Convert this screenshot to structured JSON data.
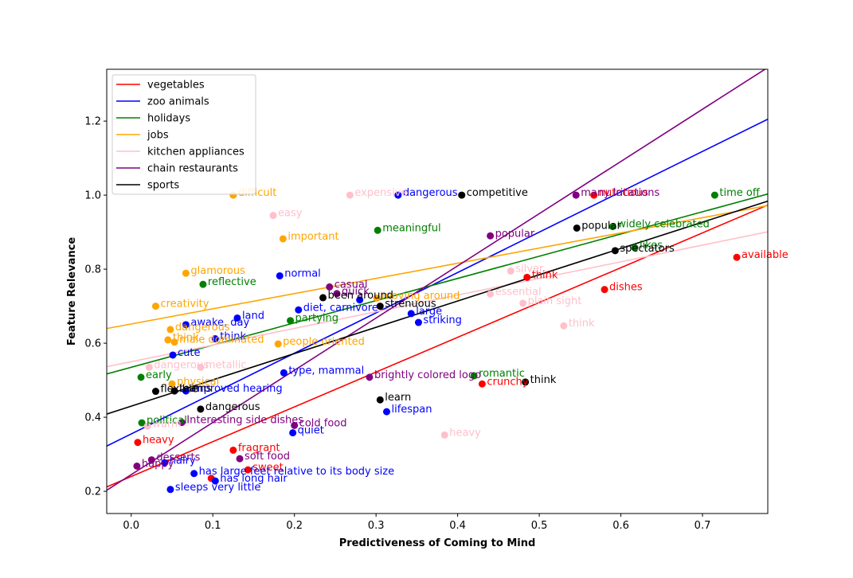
{
  "chart_data": {
    "type": "scatter",
    "title": "",
    "xlabel": "Predictiveness of Coming to Mind",
    "ylabel": "Feature Relevance",
    "xlim": [
      -0.03,
      0.78
    ],
    "ylim": [
      0.14,
      1.34
    ],
    "xticks": [
      0.0,
      0.1,
      0.2,
      0.3,
      0.4,
      0.5,
      0.6,
      0.7
    ],
    "yticks": [
      0.2,
      0.4,
      0.6,
      0.8,
      1.0,
      1.2
    ],
    "grid": false,
    "legend_position": "top-left",
    "series": [
      {
        "name": "vegetables",
        "color": "#ff0000",
        "fit": {
          "slope": 0.94,
          "intercept": 0.24
        },
        "points": [
          {
            "x": 0.008,
            "y": 0.332,
            "label": "heavy"
          },
          {
            "x": 0.125,
            "y": 0.311,
            "label": "fragrant"
          },
          {
            "x": 0.143,
            "y": 0.258,
            "label": "sweet"
          },
          {
            "x": 0.098,
            "y": 0.235,
            "label": ""
          },
          {
            "x": 0.43,
            "y": 0.49,
            "label": "crunchy"
          },
          {
            "x": 0.485,
            "y": 0.778,
            "label": "think"
          },
          {
            "x": 0.58,
            "y": 0.745,
            "label": "dishes"
          },
          {
            "x": 0.742,
            "y": 0.832,
            "label": "available"
          },
          {
            "x": 0.567,
            "y": 1.0,
            "label": "nutritious"
          }
        ]
      },
      {
        "name": "zoo animals",
        "color": "#0000ff",
        "fit": {
          "slope": 1.09,
          "intercept": 0.355
        },
        "points": [
          {
            "x": 0.048,
            "y": 0.205,
            "label": "sleeps very little"
          },
          {
            "x": 0.103,
            "y": 0.228,
            "label": "has long hair"
          },
          {
            "x": 0.077,
            "y": 0.248,
            "label": "has large feet relative to its body size"
          },
          {
            "x": 0.041,
            "y": 0.277,
            "label": "hairy"
          },
          {
            "x": 0.198,
            "y": 0.358,
            "label": "quiet"
          },
          {
            "x": 0.313,
            "y": 0.415,
            "label": "lifespan"
          },
          {
            "x": 0.067,
            "y": 0.471,
            "label": "improved hearing"
          },
          {
            "x": 0.187,
            "y": 0.52,
            "label": "type, mammal"
          },
          {
            "x": 0.051,
            "y": 0.568,
            "label": "cute"
          },
          {
            "x": 0.103,
            "y": 0.612,
            "label": "think"
          },
          {
            "x": 0.067,
            "y": 0.65,
            "label": "awake, day"
          },
          {
            "x": 0.13,
            "y": 0.668,
            "label": "land"
          },
          {
            "x": 0.205,
            "y": 0.69,
            "label": "diet, carnivore"
          },
          {
            "x": 0.28,
            "y": 0.717,
            "label": ""
          },
          {
            "x": 0.343,
            "y": 0.68,
            "label": "large"
          },
          {
            "x": 0.352,
            "y": 0.656,
            "label": "striking"
          },
          {
            "x": 0.182,
            "y": 0.782,
            "label": "normal"
          },
          {
            "x": 0.327,
            "y": 1.0,
            "label": "dangerous"
          }
        ]
      },
      {
        "name": "holidays",
        "color": "#008000",
        "fit": {
          "slope": 0.6,
          "intercept": 0.535
        },
        "points": [
          {
            "x": 0.012,
            "y": 0.508,
            "label": "early"
          },
          {
            "x": 0.013,
            "y": 0.385,
            "label": "political"
          },
          {
            "x": 0.088,
            "y": 0.759,
            "label": "reflective"
          },
          {
            "x": 0.195,
            "y": 0.661,
            "label": "partying"
          },
          {
            "x": 0.302,
            "y": 0.905,
            "label": "meaningful"
          },
          {
            "x": 0.42,
            "y": 0.512,
            "label": "romantic"
          },
          {
            "x": 0.59,
            "y": 0.915,
            "label": "widely celebrated"
          },
          {
            "x": 0.617,
            "y": 0.858,
            "label": "likes"
          },
          {
            "x": 0.715,
            "y": 1.0,
            "label": "time off"
          }
        ]
      },
      {
        "name": "jobs",
        "color": "#ffa500",
        "fit": {
          "slope": 0.41,
          "intercept": 0.652
        },
        "points": [
          {
            "x": 0.125,
            "y": 1.0,
            "label": "difficult"
          },
          {
            "x": 0.186,
            "y": 0.882,
            "label": "important"
          },
          {
            "x": 0.067,
            "y": 0.789,
            "label": "glamorous"
          },
          {
            "x": 0.03,
            "y": 0.7,
            "label": "creativity"
          },
          {
            "x": 0.048,
            "y": 0.637,
            "label": "dangerous"
          },
          {
            "x": 0.045,
            "y": 0.609,
            "label": "think"
          },
          {
            "x": 0.053,
            "y": 0.603,
            "label": "male dominated"
          },
          {
            "x": 0.18,
            "y": 0.598,
            "label": "people oriented"
          },
          {
            "x": 0.05,
            "y": 0.49,
            "label": "physical"
          },
          {
            "x": 0.301,
            "y": 0.722,
            "label": "moving around"
          }
        ]
      },
      {
        "name": "kitchen appliances",
        "color": "#ffc0cb",
        "fit": {
          "slope": 0.45,
          "intercept": 0.55
        },
        "points": [
          {
            "x": 0.268,
            "y": 1.0,
            "label": "expensive"
          },
          {
            "x": 0.174,
            "y": 0.945,
            "label": "easy"
          },
          {
            "x": 0.465,
            "y": 0.795,
            "label": "silver"
          },
          {
            "x": 0.44,
            "y": 0.733,
            "label": "essential"
          },
          {
            "x": 0.48,
            "y": 0.708,
            "label": "plain sight"
          },
          {
            "x": 0.53,
            "y": 0.647,
            "label": "think"
          },
          {
            "x": 0.085,
            "y": 0.535,
            "label": "metallic"
          },
          {
            "x": 0.022,
            "y": 0.535,
            "label": "dangerous"
          },
          {
            "x": 0.02,
            "y": 0.376,
            "label": "warm"
          },
          {
            "x": 0.384,
            "y": 0.352,
            "label": "heavy"
          }
        ]
      },
      {
        "name": "chain restaurants",
        "color": "#800080",
        "fit": {
          "slope": 1.41,
          "intercept": 0.245
        },
        "points": [
          {
            "x": 0.007,
            "y": 0.268,
            "label": "happy"
          },
          {
            "x": 0.025,
            "y": 0.285,
            "label": "desserts"
          },
          {
            "x": 0.133,
            "y": 0.288,
            "label": "soft food"
          },
          {
            "x": 0.062,
            "y": 0.386,
            "label": "Interesting side dishes"
          },
          {
            "x": 0.2,
            "y": 0.378,
            "label": "cold food"
          },
          {
            "x": 0.292,
            "y": 0.508,
            "label": "brightly colored logo"
          },
          {
            "x": 0.243,
            "y": 0.752,
            "label": "casual"
          },
          {
            "x": 0.252,
            "y": 0.734,
            "label": "quick"
          },
          {
            "x": 0.44,
            "y": 0.89,
            "label": "popular"
          },
          {
            "x": 0.545,
            "y": 1.0,
            "label": "many locations"
          }
        ]
      },
      {
        "name": "sports",
        "color": "#000000",
        "fit": {
          "slope": 0.71,
          "intercept": 0.43
        },
        "points": [
          {
            "x": 0.03,
            "y": 0.47,
            "label": "flexible"
          },
          {
            "x": 0.053,
            "y": 0.471,
            "label": "teams"
          },
          {
            "x": 0.085,
            "y": 0.422,
            "label": "dangerous"
          },
          {
            "x": 0.305,
            "y": 0.447,
            "label": "learn"
          },
          {
            "x": 0.235,
            "y": 0.723,
            "label": "been around"
          },
          {
            "x": 0.305,
            "y": 0.7,
            "label": "strenuous"
          },
          {
            "x": 0.483,
            "y": 0.495,
            "label": "think"
          },
          {
            "x": 0.405,
            "y": 1.0,
            "label": "competitive"
          },
          {
            "x": 0.546,
            "y": 0.911,
            "label": "popular"
          },
          {
            "x": 0.593,
            "y": 0.85,
            "label": "spectators"
          }
        ]
      }
    ]
  }
}
